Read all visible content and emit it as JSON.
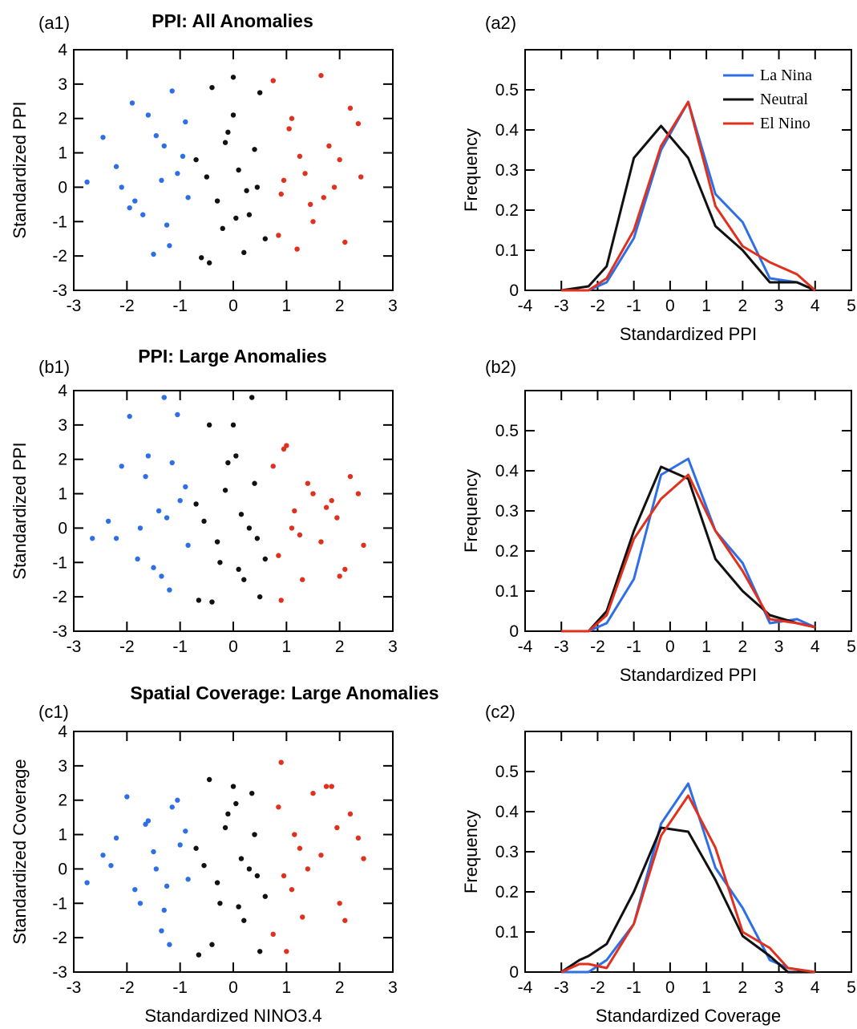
{
  "colors": {
    "la_nina": "#2f6fe6",
    "neutral": "#111111",
    "el_nino": "#e0301e"
  },
  "chart_data": [
    {
      "id": "a1",
      "type": "scatter",
      "panel_label": "(a1)",
      "title": "PPI: All Anomalies",
      "xlabel": "",
      "ylabel": "Standardized PPI",
      "xlim": [
        -3,
        3
      ],
      "ylim": [
        -3,
        4
      ],
      "xticks": [
        -3,
        -2,
        -1,
        0,
        1,
        2,
        3
      ],
      "yticks": [
        -3,
        -2,
        -1,
        0,
        1,
        2,
        3,
        4
      ],
      "grid": false,
      "series": [
        {
          "name": "La Nina",
          "x": [
            -2.75,
            -2.45,
            -2.1,
            -1.9,
            -1.85,
            -1.6,
            -1.45,
            -1.35,
            -1.25,
            -1.15,
            -0.95,
            -1.7,
            -1.2,
            -1.05,
            -0.85,
            -1.5,
            -1.3,
            -0.9,
            -2.2,
            -1.95
          ],
          "y": [
            0.15,
            1.45,
            0.0,
            2.45,
            -0.4,
            2.1,
            1.5,
            0.2,
            -1.1,
            2.8,
            0.9,
            -0.8,
            -1.7,
            0.4,
            -0.3,
            -1.95,
            1.2,
            1.9,
            0.6,
            -0.6
          ]
        },
        {
          "name": "Neutral",
          "x": [
            -0.6,
            -0.4,
            -0.2,
            0.0,
            0.1,
            0.3,
            0.5,
            -0.5,
            -0.1,
            0.2,
            0.4,
            -0.3,
            0.0,
            0.6,
            -0.7,
            -0.45,
            0.25,
            -0.15,
            0.45,
            0.05
          ],
          "y": [
            -2.05,
            2.9,
            -1.2,
            3.2,
            0.5,
            -0.8,
            2.75,
            0.3,
            1.6,
            -1.9,
            1.1,
            -0.4,
            2.1,
            -1.5,
            0.8,
            -2.2,
            -0.1,
            1.3,
            0.0,
            -0.9
          ]
        },
        {
          "name": "El Nino",
          "x": [
            0.75,
            0.9,
            1.05,
            1.2,
            1.35,
            1.5,
            1.65,
            1.8,
            2.0,
            2.2,
            2.35,
            2.4,
            0.85,
            1.1,
            1.45,
            1.9,
            2.1,
            1.25,
            0.95,
            1.7
          ],
          "y": [
            3.1,
            -0.2,
            1.7,
            -1.8,
            0.4,
            -1.0,
            3.25,
            1.2,
            0.8,
            2.3,
            1.85,
            0.3,
            -1.4,
            2.0,
            -0.5,
            0.0,
            -1.6,
            0.9,
            0.2,
            -0.3
          ]
        }
      ]
    },
    {
      "id": "a2",
      "type": "line",
      "panel_label": "(a2)",
      "title": "",
      "xlabel": "Standardized PPI",
      "ylabel": "Frequency",
      "xlim": [
        -4,
        5
      ],
      "ylim": [
        0,
        0.6
      ],
      "xticks": [
        -4,
        -3,
        -2,
        -1,
        0,
        1,
        2,
        3,
        4,
        5
      ],
      "yticks": [
        0,
        0.1,
        0.2,
        0.3,
        0.4,
        0.5
      ],
      "ytick_labels": [
        "0",
        "0.1",
        "0.2",
        "0.3",
        "0.4",
        "0.5"
      ],
      "grid": false,
      "legend": {
        "placement": "top-right",
        "entries": [
          "La Nina",
          "Neutral",
          "El Nino"
        ]
      },
      "x": [
        -3.0,
        -2.25,
        -1.75,
        -1.0,
        -0.25,
        0.5,
        1.25,
        2.0,
        2.75,
        3.5,
        4.0
      ],
      "series": [
        {
          "name": "La Nina",
          "values": [
            0.0,
            0.0,
            0.02,
            0.13,
            0.35,
            0.47,
            0.24,
            0.17,
            0.03,
            0.02,
            0.0
          ]
        },
        {
          "name": "Neutral",
          "values": [
            0.0,
            0.01,
            0.06,
            0.33,
            0.41,
            0.33,
            0.16,
            0.1,
            0.02,
            0.02,
            0.0
          ]
        },
        {
          "name": "El Nino",
          "values": [
            0.0,
            0.0,
            0.03,
            0.15,
            0.36,
            0.47,
            0.21,
            0.11,
            0.07,
            0.04,
            0.0
          ]
        }
      ]
    },
    {
      "id": "b1",
      "type": "scatter",
      "panel_label": "(b1)",
      "title": "PPI: Large Anomalies",
      "xlabel": "",
      "ylabel": "Standardized PPI",
      "xlim": [
        -3,
        3
      ],
      "ylim": [
        -3,
        4
      ],
      "xticks": [
        -3,
        -2,
        -1,
        0,
        1,
        2,
        3
      ],
      "yticks": [
        -3,
        -2,
        -1,
        0,
        1,
        2,
        3,
        4
      ],
      "grid": false,
      "series": [
        {
          "name": "La Nina",
          "x": [
            -2.65,
            -2.35,
            -2.1,
            -1.95,
            -1.8,
            -1.6,
            -1.4,
            -1.3,
            -1.2,
            -1.05,
            -0.9,
            -1.75,
            -1.5,
            -1.15,
            -0.85,
            -2.2,
            -1.35,
            -1.0,
            -1.65,
            -1.25
          ],
          "y": [
            -0.3,
            0.2,
            1.8,
            3.25,
            -0.9,
            2.1,
            0.5,
            3.8,
            -1.8,
            3.3,
            1.2,
            0.0,
            -1.15,
            1.9,
            -0.5,
            -0.3,
            -1.4,
            0.8,
            1.5,
            0.3
          ]
        },
        {
          "name": "Neutral",
          "x": [
            -0.65,
            -0.45,
            -0.25,
            0.0,
            0.15,
            0.35,
            0.5,
            -0.55,
            -0.1,
            0.2,
            0.4,
            -0.3,
            0.05,
            0.6,
            -0.7,
            -0.4,
            0.3,
            -0.15,
            0.45,
            0.1
          ],
          "y": [
            -2.1,
            3.0,
            -1.0,
            3.0,
            0.4,
            3.8,
            -2.0,
            0.2,
            1.9,
            -1.5,
            1.3,
            -0.4,
            2.1,
            -0.9,
            0.7,
            -2.15,
            0.0,
            1.1,
            -0.3,
            -1.2
          ]
        },
        {
          "name": "El Nino",
          "x": [
            0.75,
            0.9,
            1.0,
            1.15,
            1.3,
            1.5,
            1.65,
            1.85,
            2.0,
            2.2,
            2.35,
            2.45,
            0.85,
            1.1,
            1.4,
            1.95,
            2.1,
            1.25,
            0.95,
            1.75
          ],
          "y": [
            1.8,
            -2.1,
            2.4,
            0.5,
            -1.5,
            1.0,
            -0.4,
            0.8,
            -1.4,
            1.5,
            1.0,
            -0.5,
            -0.8,
            0.0,
            1.3,
            0.3,
            -1.2,
            -0.2,
            2.3,
            0.6
          ]
        }
      ]
    },
    {
      "id": "b2",
      "type": "line",
      "panel_label": "(b2)",
      "title": "",
      "xlabel": "Standardized PPI",
      "ylabel": "Frequency",
      "xlim": [
        -4,
        5
      ],
      "ylim": [
        0,
        0.6
      ],
      "xticks": [
        -4,
        -3,
        -2,
        -1,
        0,
        1,
        2,
        3,
        4,
        5
      ],
      "yticks": [
        0,
        0.1,
        0.2,
        0.3,
        0.4,
        0.5
      ],
      "ytick_labels": [
        "0",
        "0.1",
        "0.2",
        "0.3",
        "0.4",
        "0.5"
      ],
      "grid": false,
      "x": [
        -3.0,
        -2.25,
        -1.75,
        -1.0,
        -0.25,
        0.5,
        1.25,
        2.0,
        2.75,
        3.5,
        4.0
      ],
      "series": [
        {
          "name": "La Nina",
          "values": [
            0.0,
            0.0,
            0.02,
            0.13,
            0.39,
            0.43,
            0.25,
            0.17,
            0.02,
            0.03,
            0.01
          ]
        },
        {
          "name": "Neutral",
          "values": [
            0.0,
            0.0,
            0.05,
            0.25,
            0.41,
            0.38,
            0.18,
            0.1,
            0.04,
            0.02,
            0.01
          ]
        },
        {
          "name": "El Nino",
          "values": [
            0.0,
            0.0,
            0.04,
            0.23,
            0.33,
            0.39,
            0.25,
            0.15,
            0.03,
            0.02,
            0.01
          ]
        }
      ]
    },
    {
      "id": "c1",
      "type": "scatter",
      "panel_label": "(c1)",
      "title": "Spatial Coverage: Large Anomalies",
      "xlabel": "Standardized NINO3.4",
      "ylabel": "Standardized Coverage",
      "xlim": [
        -3,
        3
      ],
      "ylim": [
        -3,
        4
      ],
      "xticks": [
        -3,
        -2,
        -1,
        0,
        1,
        2,
        3
      ],
      "yticks": [
        -3,
        -2,
        -1,
        0,
        1,
        2,
        3,
        4
      ],
      "grid": false,
      "series": [
        {
          "name": "La Nina",
          "x": [
            -2.75,
            -2.45,
            -2.2,
            -2.0,
            -1.85,
            -1.6,
            -1.45,
            -1.3,
            -1.2,
            -1.05,
            -0.9,
            -1.75,
            -1.5,
            -1.15,
            -0.85,
            -2.3,
            -1.35,
            -1.0,
            -1.65,
            -1.25
          ],
          "y": [
            -0.4,
            0.4,
            0.9,
            2.1,
            -0.6,
            1.4,
            0.0,
            -1.2,
            -2.2,
            2.0,
            1.1,
            -1.0,
            0.5,
            1.8,
            -0.3,
            0.1,
            -1.8,
            0.7,
            1.3,
            -0.5
          ]
        },
        {
          "name": "Neutral",
          "x": [
            -0.65,
            -0.45,
            -0.25,
            0.0,
            0.15,
            0.35,
            0.5,
            -0.55,
            -0.1,
            0.2,
            0.4,
            -0.3,
            0.05,
            0.6,
            -0.7,
            -0.4,
            0.3,
            -0.15,
            0.45,
            0.1
          ],
          "y": [
            -2.5,
            2.6,
            -1.0,
            2.4,
            0.3,
            2.2,
            -2.4,
            0.1,
            1.6,
            -1.5,
            1.0,
            -0.4,
            1.9,
            -0.8,
            0.6,
            -2.2,
            0.0,
            1.2,
            -0.2,
            -1.1
          ]
        },
        {
          "name": "El Nino",
          "x": [
            0.75,
            0.9,
            1.0,
            1.15,
            1.3,
            1.5,
            1.65,
            1.85,
            2.0,
            2.2,
            2.35,
            2.45,
            0.85,
            1.1,
            1.4,
            1.95,
            2.1,
            1.25,
            0.95,
            1.75
          ],
          "y": [
            -1.9,
            3.1,
            -2.4,
            1.0,
            -1.4,
            2.2,
            0.4,
            2.4,
            -1.0,
            1.6,
            0.9,
            0.3,
            1.8,
            -0.6,
            0.0,
            1.2,
            -1.5,
            0.6,
            -0.2,
            2.4
          ]
        }
      ]
    },
    {
      "id": "c2",
      "type": "line",
      "panel_label": "(c2)",
      "title": "",
      "xlabel": "Standardized Coverage",
      "ylabel": "Frequency",
      "xlim": [
        -4,
        5
      ],
      "ylim": [
        0,
        0.6
      ],
      "xticks": [
        -4,
        -3,
        -2,
        -1,
        0,
        1,
        2,
        3,
        4,
        5
      ],
      "yticks": [
        0,
        0.1,
        0.2,
        0.3,
        0.4,
        0.5
      ],
      "ytick_labels": [
        "0",
        "0.1",
        "0.2",
        "0.3",
        "0.4",
        "0.5"
      ],
      "grid": false,
      "x": [
        -3.0,
        -2.5,
        -2.25,
        -1.75,
        -1.0,
        -0.25,
        0.5,
        1.25,
        2.0,
        2.75,
        3.25,
        4.0
      ],
      "series": [
        {
          "name": "La Nina",
          "values": [
            0.0,
            0.0,
            0.0,
            0.03,
            0.12,
            0.37,
            0.47,
            0.26,
            0.16,
            0.03,
            0.01,
            0.0
          ]
        },
        {
          "name": "Neutral",
          "values": [
            0.0,
            0.03,
            0.04,
            0.07,
            0.2,
            0.36,
            0.35,
            0.23,
            0.09,
            0.04,
            0.0,
            0.0
          ]
        },
        {
          "name": "El Nino",
          "values": [
            0.0,
            0.02,
            0.02,
            0.01,
            0.12,
            0.34,
            0.44,
            0.31,
            0.1,
            0.06,
            0.01,
            0.0
          ]
        }
      ]
    }
  ]
}
